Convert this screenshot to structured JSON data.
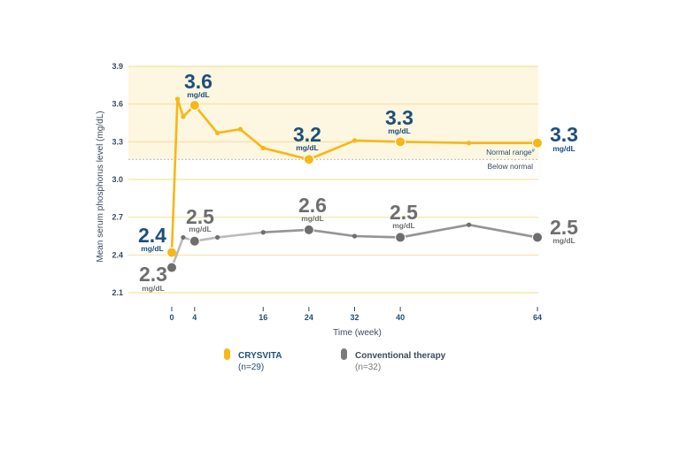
{
  "chart_data": {
    "type": "line",
    "ylabel": "Mean serum phosphorus level (mg/dL)",
    "xlabel": "Time (week)",
    "ylim": [
      2.1,
      3.9
    ],
    "yticks": [
      "2.1",
      "2.4",
      "2.7",
      "3.0",
      "3.3",
      "3.6",
      "3.9"
    ],
    "xticks": [
      "0",
      "4",
      "16",
      "24",
      "32",
      "40",
      "64"
    ],
    "normal_range": {
      "lower": 3.16,
      "upper": 3.9,
      "above_label": "Normal range",
      "footnote_mark": "#",
      "below_label": "Below normal"
    },
    "series": [
      {
        "name": "CRYSVITA",
        "n_label": "(n=29)",
        "color": "#f7b716",
        "points": [
          {
            "x": 0,
            "y": 2.42,
            "key": true
          },
          {
            "x": 1,
            "y": 3.64
          },
          {
            "x": 2,
            "y": 3.5
          },
          {
            "x": 4,
            "y": 3.59,
            "key": true
          },
          {
            "x": 8,
            "y": 3.37
          },
          {
            "x": 12,
            "y": 3.4
          },
          {
            "x": 16,
            "y": 3.25
          },
          {
            "x": 24,
            "y": 3.16,
            "key": true
          },
          {
            "x": 32,
            "y": 3.31
          },
          {
            "x": 40,
            "y": 3.3,
            "key": true
          },
          {
            "x": 52,
            "y": 3.29
          },
          {
            "x": 64,
            "y": 3.29,
            "key": true
          }
        ],
        "callouts": [
          {
            "x": 0,
            "value": "2.4",
            "unit": "mg/dL"
          },
          {
            "x": 4,
            "value": "3.6",
            "unit": "mg/dL"
          },
          {
            "x": 24,
            "value": "3.2",
            "unit": "mg/dL"
          },
          {
            "x": 40,
            "value": "3.3",
            "unit": "mg/dL"
          },
          {
            "x": 64,
            "value": "3.3",
            "unit": "mg/dL"
          }
        ]
      },
      {
        "name": "Conventional therapy",
        "n_label": "(n=32)",
        "color": "#6e6e6e",
        "points": [
          {
            "x": 0,
            "y": 2.3,
            "key": true
          },
          {
            "x": 2,
            "y": 2.54
          },
          {
            "x": 4,
            "y": 2.51,
            "key": true
          },
          {
            "x": 8,
            "y": 2.54
          },
          {
            "x": 16,
            "y": 2.58
          },
          {
            "x": 24,
            "y": 2.6,
            "key": true
          },
          {
            "x": 32,
            "y": 2.55
          },
          {
            "x": 40,
            "y": 2.54,
            "key": true
          },
          {
            "x": 52,
            "y": 2.64
          },
          {
            "x": 64,
            "y": 2.54,
            "key": true
          }
        ],
        "callouts": [
          {
            "x": 0,
            "value": "2.3",
            "unit": "mg/dL"
          },
          {
            "x": 4,
            "value": "2.5",
            "unit": "mg/dL"
          },
          {
            "x": 24,
            "value": "2.6",
            "unit": "mg/dL"
          },
          {
            "x": 40,
            "value": "2.5",
            "unit": "mg/dL"
          },
          {
            "x": 64,
            "value": "2.5",
            "unit": "mg/dL"
          }
        ]
      }
    ],
    "grid": true,
    "legend_position": "bottom"
  },
  "colors": {
    "navy": "#1d4f7a",
    "gold": "#f7b716",
    "gray": "#6e6e6e",
    "band": "#fdf6e0",
    "grid": "#f5dc8a"
  }
}
